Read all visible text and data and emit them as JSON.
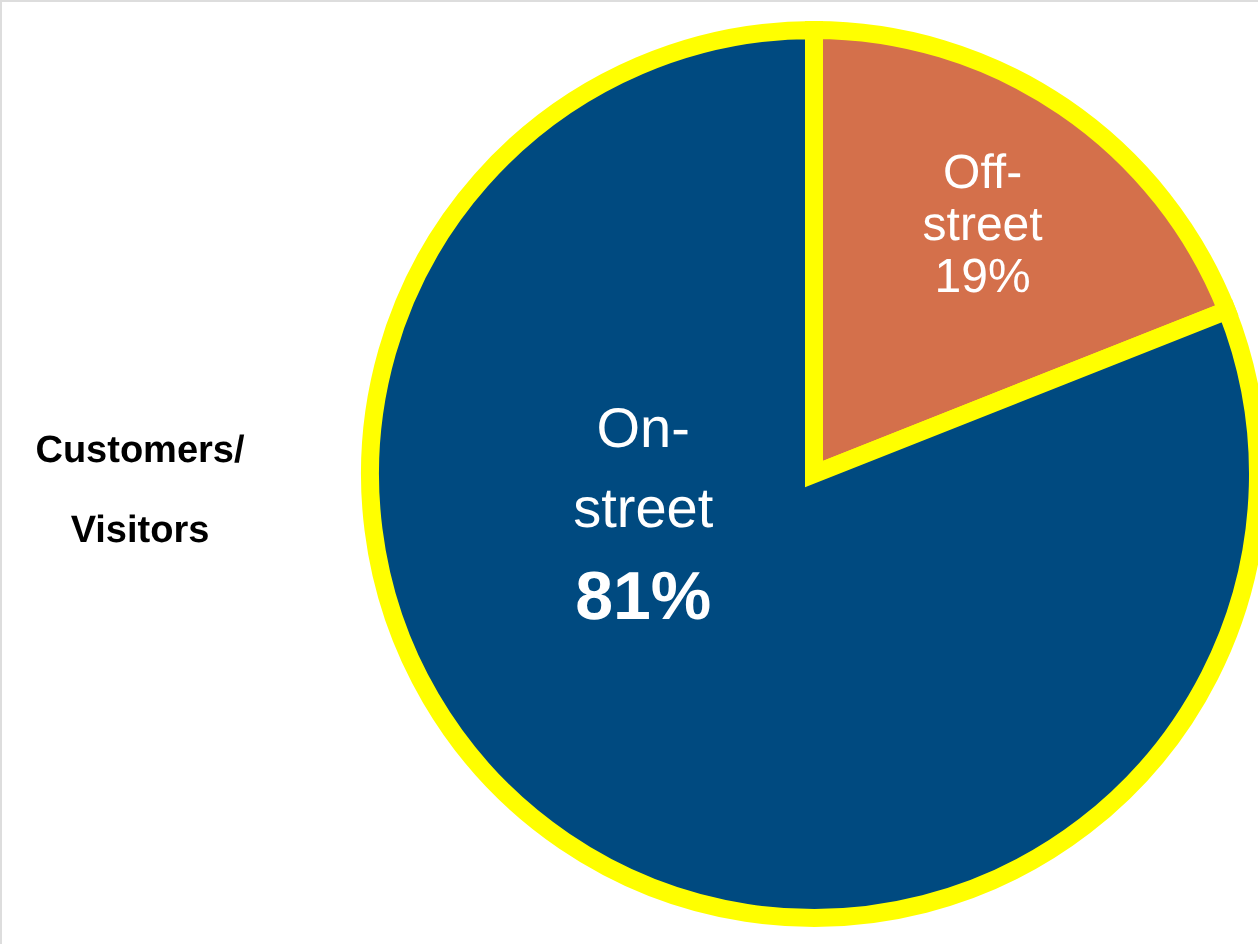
{
  "chart_data": {
    "type": "pie",
    "title": "Customers/ Visitors",
    "categories": [
      "Off-street",
      "On-street"
    ],
    "values": [
      19,
      81
    ],
    "colors": [
      "#d4704b",
      "#004a80"
    ],
    "value_labels": [
      "19%",
      "81%"
    ]
  }
}
